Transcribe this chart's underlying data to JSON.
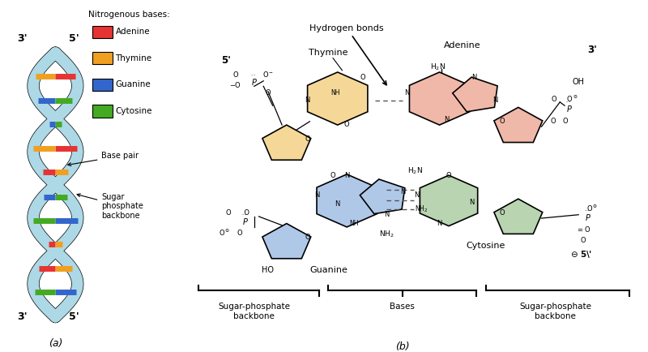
{
  "bg_color": "#ffffff",
  "fig_width": 8.0,
  "fig_height": 4.34,
  "dpi": 100,
  "panel_a": {
    "label": "(a)",
    "helix_color": "#add8e6",
    "helix_stroke": "#000000",
    "strand_colors": {
      "adenine": "#e63333",
      "thymine": "#f0a020",
      "guanine": "#3366cc",
      "cytosine": "#44aa22"
    },
    "legend_title": "Nitrogenous bases:",
    "legend_items": [
      {
        "name": "Adenine",
        "color": "#e63333"
      },
      {
        "name": "Thymine",
        "color": "#f0a020"
      },
      {
        "name": "Guanine",
        "color": "#3366cc"
      },
      {
        "name": "Cytosine",
        "color": "#44aa22"
      }
    ],
    "label_3prime_top": "3'",
    "label_5prime_top": "5'",
    "label_3prime_bot": "3'",
    "label_5prime_bot": "5'",
    "label_base_pair": "Base pair",
    "label_backbone": "Sugar\nphosphate\nbackbone"
  },
  "panel_b": {
    "label": "(b)",
    "thymine_color": "#f5d898",
    "adenine_color": "#f0b8a8",
    "guanine_color": "#b0c8e8",
    "cytosine_color": "#b8d4b0",
    "sugar_thymine_color": "#f5d898",
    "sugar_adenine_color": "#f0b8a8",
    "sugar_guanine_color": "#b0c8e8",
    "sugar_cytosine_color": "#b8d4b0",
    "hbond_color": "#555555",
    "struct_line_color": "#000000",
    "label_hydrogen_bonds": "Hydrogen bonds",
    "label_thymine": "Thymine",
    "label_adenine": "Adenine",
    "label_guanine": "Guanine",
    "label_cytosine": "Cytosine",
    "label_5prime_top": "5'",
    "label_3prime_top": "3'",
    "label_5prime_bot": "5'",
    "label_sph_left": "Sugar-phosphate\nbackbone",
    "label_bases": "Bases",
    "label_sph_right": "Sugar-phosphate\nbackbone"
  }
}
